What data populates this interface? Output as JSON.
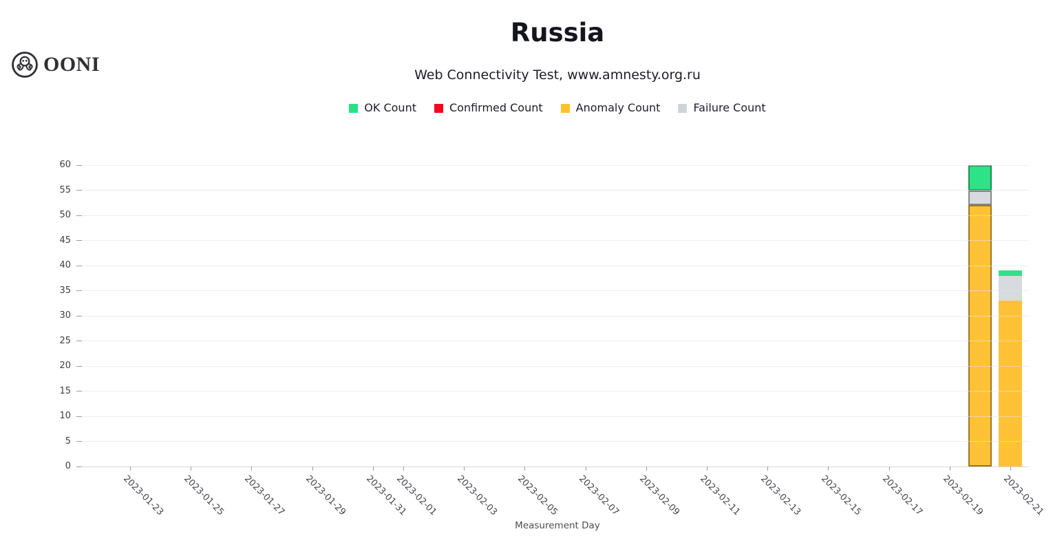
{
  "brand": {
    "name": "OONI",
    "icon": "ooni-octopus-icon"
  },
  "header": {
    "title": "Russia",
    "subtitle": "Web Connectivity Test, www.amnesty.org.ru"
  },
  "legend": {
    "items": [
      {
        "label": "OK Count",
        "color": "#2be084"
      },
      {
        "label": "Confirmed Count",
        "color": "#f3071d"
      },
      {
        "label": "Anomaly Count",
        "color": "#ffc12e"
      },
      {
        "label": "Failure Count",
        "color": "#ced4da"
      }
    ]
  },
  "chart_data": {
    "type": "bar",
    "stacked": true,
    "title": "Russia",
    "subtitle": "Web Connectivity Test, www.amnesty.org.ru",
    "xlabel": "Measurement Day",
    "ylabel": "",
    "ylim": [
      0,
      60
    ],
    "y_ticks": [
      0,
      5,
      10,
      15,
      20,
      25,
      30,
      35,
      40,
      45,
      50,
      55,
      60
    ],
    "grid": "horizontal",
    "legend_position": "top",
    "x_tick_labels": [
      "2023-01-23",
      "2023-01-25",
      "2023-01-27",
      "2023-01-29",
      "2023-01-31",
      "2023-02-01",
      "2023-02-03",
      "2023-02-05",
      "2023-02-07",
      "2023-02-09",
      "2023-02-11",
      "2023-02-13",
      "2023-02-15",
      "2023-02-17",
      "2023-02-19",
      "2023-02-21"
    ],
    "categories": [
      "2023-02-20",
      "2023-02-21"
    ],
    "stack_order_bottom_to_top": [
      "Anomaly Count",
      "Confirmed Count",
      "Failure Count",
      "OK Count"
    ],
    "series": [
      {
        "name": "Anomaly Count",
        "color": "#ffc236",
        "values": [
          52,
          33
        ]
      },
      {
        "name": "Confirmed Count",
        "color": "#f3071d",
        "values": [
          0,
          0
        ]
      },
      {
        "name": "Failure Count",
        "color": "#d7dbe0",
        "values": [
          3,
          5
        ]
      },
      {
        "name": "OK Count",
        "color": "#2ee287",
        "values": [
          5,
          1
        ]
      }
    ],
    "totals": [
      60,
      39
    ],
    "highlighted_category": "2023-02-20"
  }
}
